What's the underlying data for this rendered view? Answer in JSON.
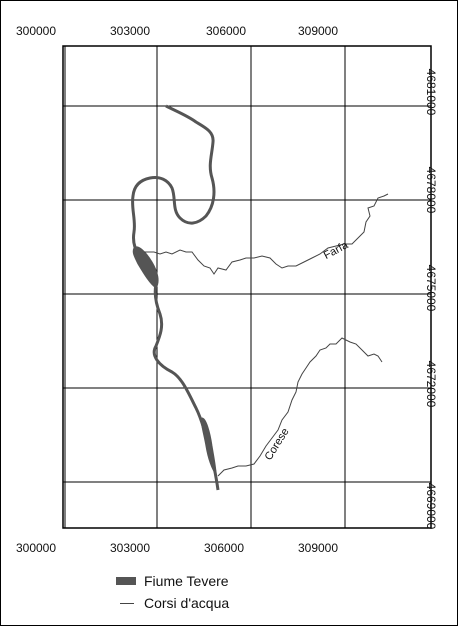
{
  "map": {
    "x_ticks": [
      "300000",
      "303000",
      "306000",
      "309000"
    ],
    "y_ticks": [
      "4681000",
      "4678000",
      "4675000",
      "4672000",
      "4669000"
    ],
    "river_labels": {
      "farfa": "Farfa",
      "corese": "Corese"
    },
    "colors": {
      "tevere": "#555555",
      "streams": "#444444",
      "grid": "#000000"
    }
  },
  "legend": {
    "tevere_label": "Fiume Tevere",
    "streams_label": "Corsi d'acqua"
  }
}
